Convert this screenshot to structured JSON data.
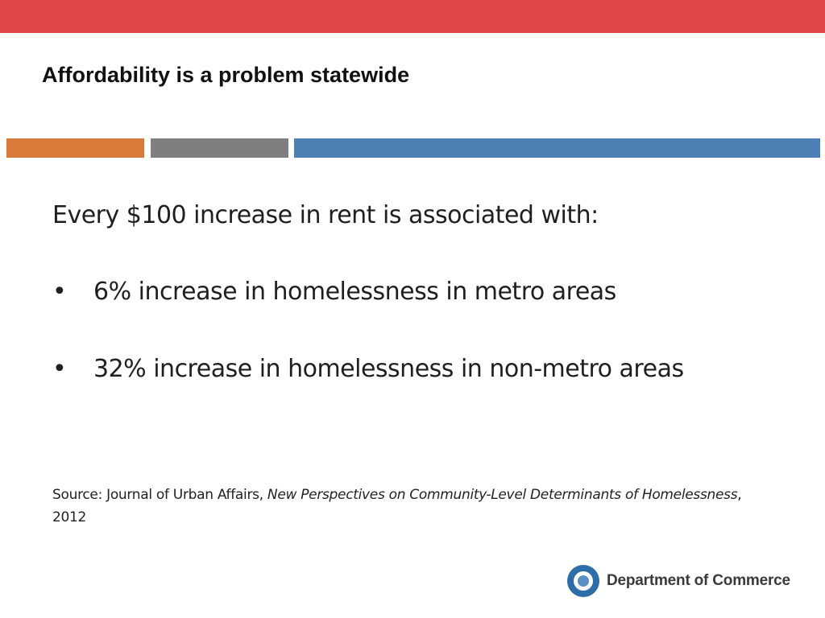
{
  "header": {
    "title": "Affordability is a problem statewide",
    "colors": {
      "top_bar": "#e04646",
      "stripe_orange": "#d9793a",
      "stripe_gray": "#7f7f7f",
      "stripe_blue": "#4e7fb5"
    }
  },
  "body": {
    "lead": "Every $100 increase in rent is associated with:",
    "bullet_symbol": "•",
    "bullets": [
      {
        "text": "6% increase in homelessness in metro areas"
      },
      {
        "text": "32% increase in homelessness in non-metro areas"
      }
    ],
    "source": {
      "prefix": "Source: Journal of Urban Affairs, ",
      "title": "New Perspectives on Community-Level Determinants of Homelessness",
      "suffix": ", 2012"
    }
  },
  "footer": {
    "seal_icon": "washington-state-seal-icon",
    "department": "Department of Commerce"
  }
}
